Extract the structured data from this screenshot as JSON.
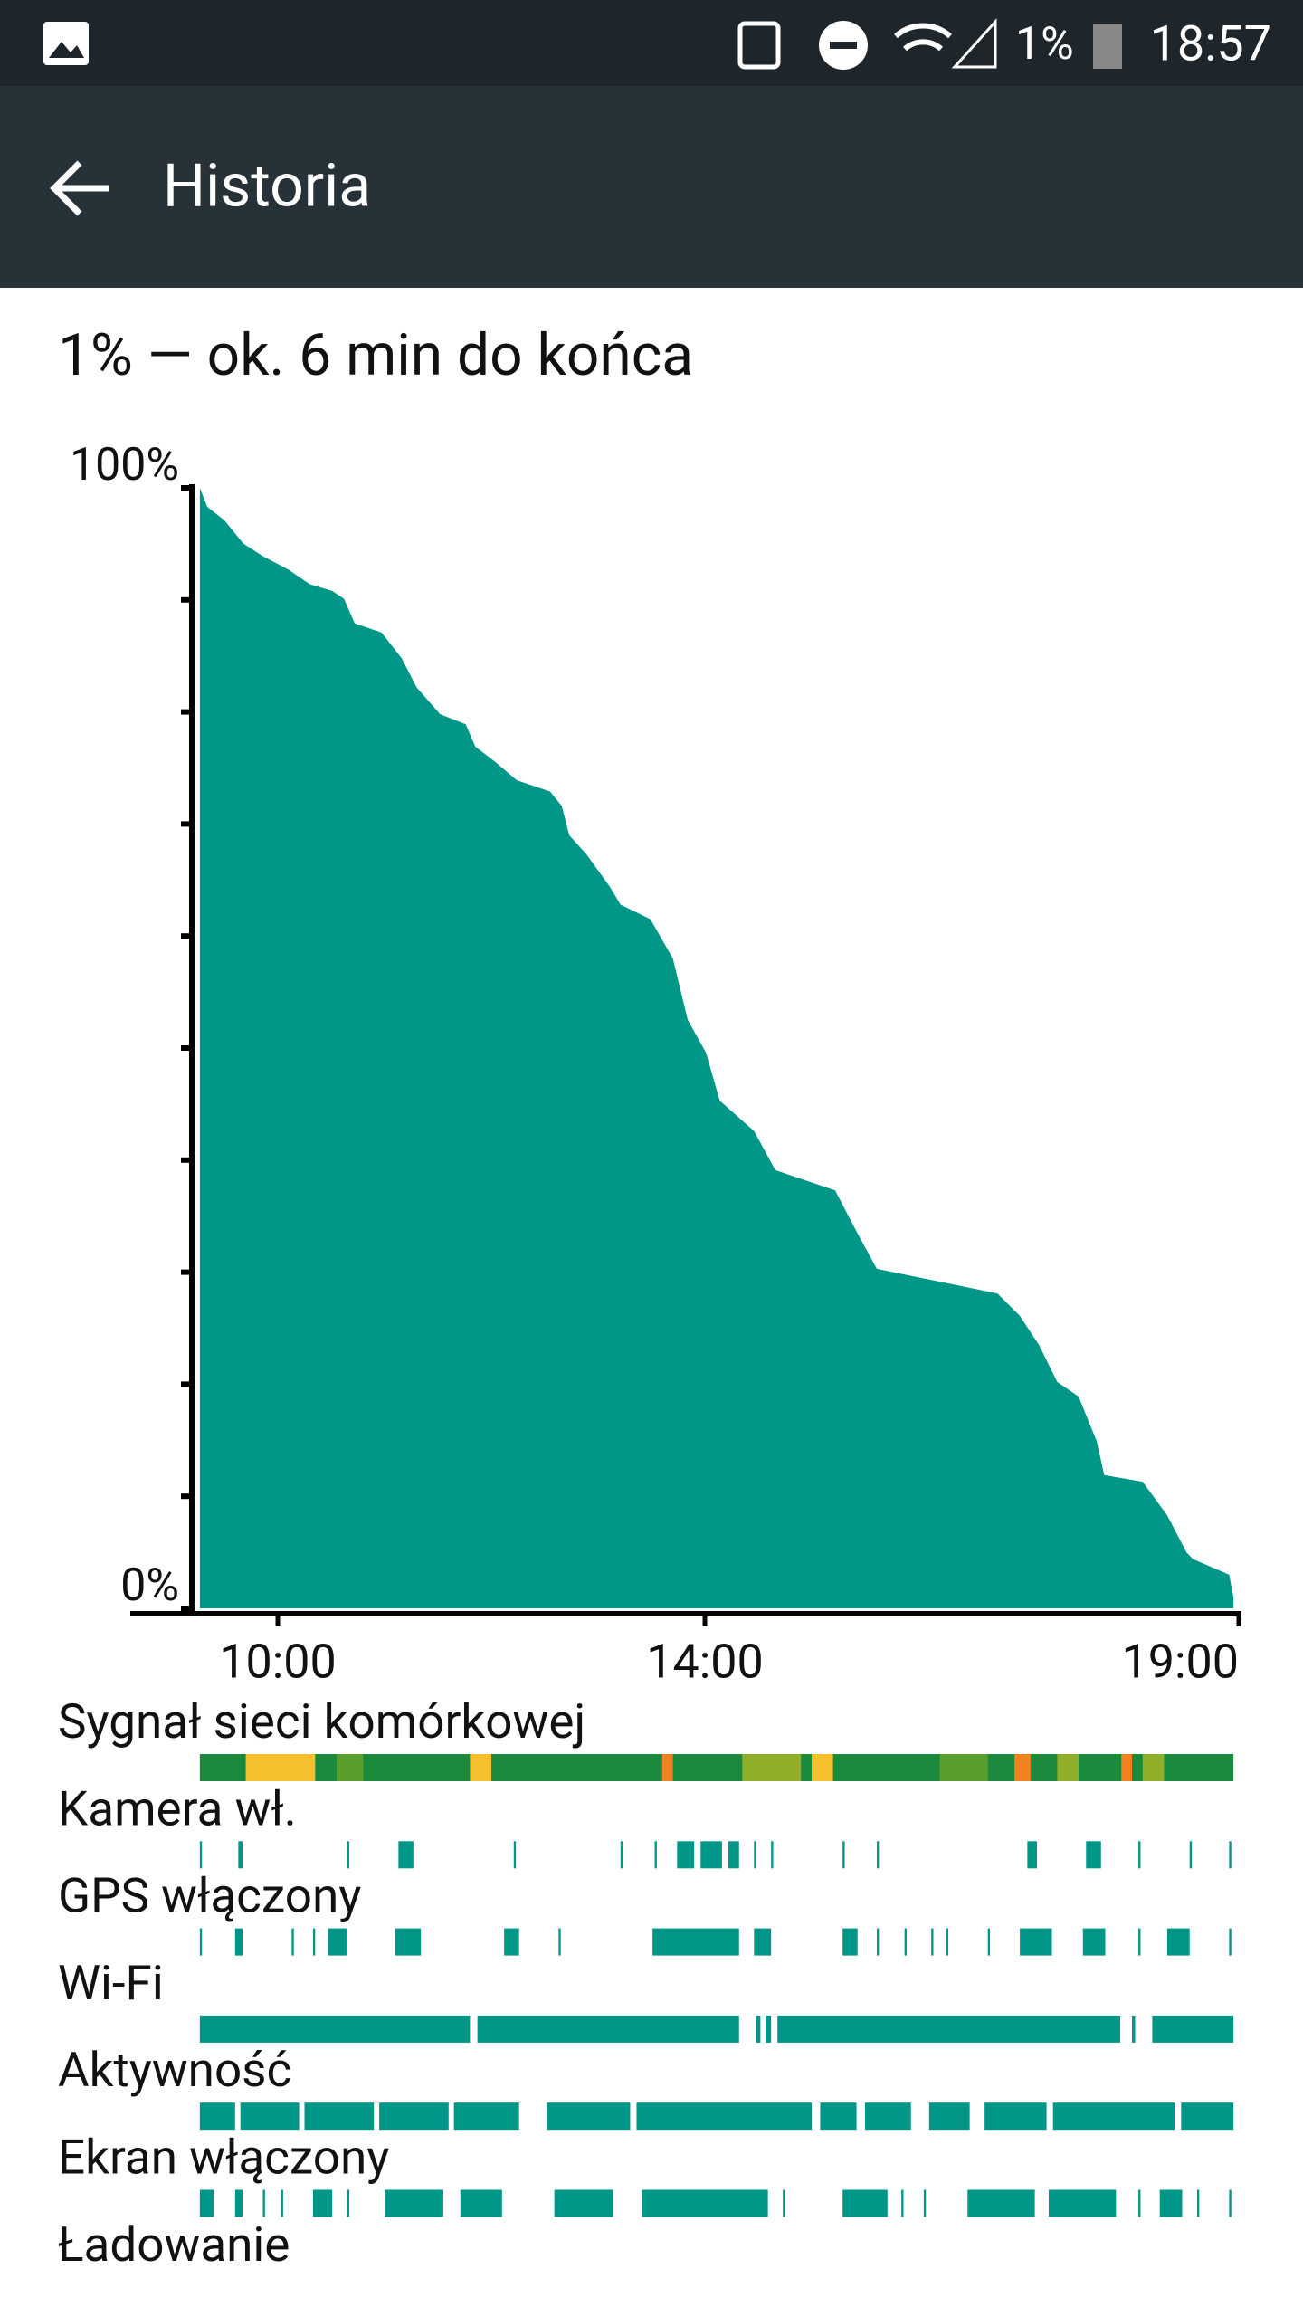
{
  "status_bar": {
    "battery": "1%",
    "time": "18:57"
  },
  "app_bar": {
    "title": "Historia"
  },
  "summary": "1% — ok. 6 min do końca",
  "chart_data": {
    "type": "area",
    "color": "#009688",
    "x": [
      9.27,
      9.34,
      9.5,
      9.68,
      9.86,
      10.1,
      10.3,
      10.51,
      10.62,
      10.72,
      10.97,
      11.16,
      11.3,
      11.52,
      11.76,
      11.85,
      12.03,
      12.24,
      12.55,
      12.66,
      12.73,
      12.89,
      13.11,
      13.21,
      13.49,
      13.7,
      13.84,
      14.01,
      14.14,
      14.46,
      14.66,
      15.22,
      15.4,
      15.61,
      16.74,
      16.95,
      17.13,
      17.3,
      17.5,
      17.67,
      17.74,
      18.1,
      18.33,
      18.51,
      18.57,
      18.91,
      18.95
    ],
    "values": [
      100,
      98.3,
      97.1,
      95,
      93.9,
      92.7,
      91.4,
      90.8,
      90.1,
      87.9,
      87.1,
      84.8,
      82.2,
      79.8,
      78.9,
      76.9,
      75.6,
      73.9,
      72.9,
      71.6,
      69,
      67.3,
      64.4,
      62.8,
      61.5,
      58,
      52.5,
      49.6,
      45.3,
      42.6,
      39.1,
      37.3,
      34,
      30.3,
      28.1,
      26.1,
      23.5,
      20.2,
      18.9,
      14.9,
      11.9,
      11.3,
      8.3,
      5,
      4.4,
      3,
      1
    ],
    "xlim": [
      9.27,
      18.95
    ],
    "xticks": [
      {
        "value": 10,
        "label": "10:00"
      },
      {
        "value": 14,
        "label": "14:00"
      },
      {
        "value": 19,
        "label": "19:00"
      }
    ],
    "ylim": [
      0,
      100
    ],
    "yticks": [
      {
        "value": 0,
        "label": "0%"
      },
      {
        "value": 10,
        "label": null
      },
      {
        "value": 20,
        "label": null
      },
      {
        "value": 30,
        "label": null
      },
      {
        "value": 40,
        "label": null
      },
      {
        "value": 50,
        "label": null
      },
      {
        "value": 60,
        "label": null
      },
      {
        "value": 70,
        "label": null
      },
      {
        "value": 80,
        "label": null
      },
      {
        "value": 90,
        "label": null
      },
      {
        "value": 100,
        "label": "100%"
      }
    ]
  },
  "tracks": [
    {
      "label": "Sygnał sieci komórkowej",
      "color": "#1b8a3c",
      "segments": [
        [
          9.27,
          18.95
        ],
        [
          9.7,
          10.35
        ],
        [
          10.55,
          10.8
        ],
        [
          11.8,
          12.0
        ],
        [
          13.6,
          13.7
        ],
        [
          14.35,
          14.9
        ],
        [
          15.0,
          15.2
        ],
        [
          16.2,
          16.65
        ],
        [
          16.9,
          17.05
        ],
        [
          17.3,
          17.5
        ],
        [
          17.9,
          18.0
        ],
        [
          18.1,
          18.3
        ]
      ],
      "colors": [
        "#1b8a3c",
        "#f6c02c",
        "#5a9e2f",
        "#f6c02c",
        "#f4811f",
        "#8fae2a",
        "#f6c02c",
        "#5a9e2f",
        "#f4811f",
        "#8fae2a",
        "#f4811f",
        "#8fae2a"
      ]
    },
    {
      "label": "Kamera wł.",
      "color": "#009688",
      "segments": [
        [
          9.27,
          9.29
        ],
        [
          9.63,
          9.67
        ],
        [
          10.65,
          10.67
        ],
        [
          11.13,
          11.27
        ],
        [
          12.21,
          12.23
        ],
        [
          13.21,
          13.23
        ],
        [
          13.53,
          13.55
        ],
        [
          13.74,
          13.9
        ],
        [
          13.96,
          14.16
        ],
        [
          14.22,
          14.32
        ],
        [
          14.46,
          14.48
        ],
        [
          14.62,
          14.64
        ],
        [
          15.29,
          15.31
        ],
        [
          15.61,
          15.63
        ],
        [
          17.02,
          17.11
        ],
        [
          17.57,
          17.71
        ],
        [
          18.06,
          18.08
        ],
        [
          18.54,
          18.56
        ],
        [
          18.91,
          18.93
        ]
      ]
    },
    {
      "label": "GPS włączony",
      "color": "#009688",
      "segments": [
        [
          9.27,
          9.29
        ],
        [
          9.6,
          9.67
        ],
        [
          10.13,
          10.15
        ],
        [
          10.33,
          10.35
        ],
        [
          10.47,
          10.65
        ],
        [
          11.1,
          11.34
        ],
        [
          12.12,
          12.26
        ],
        [
          12.63,
          12.65
        ],
        [
          13.51,
          14.32
        ],
        [
          14.46,
          14.62
        ],
        [
          15.29,
          15.43
        ],
        [
          15.61,
          15.63
        ],
        [
          15.87,
          15.89
        ],
        [
          16.12,
          16.14
        ],
        [
          16.26,
          16.28
        ],
        [
          16.65,
          16.67
        ],
        [
          16.95,
          17.25
        ],
        [
          17.54,
          17.75
        ],
        [
          18.06,
          18.08
        ],
        [
          18.33,
          18.54
        ],
        [
          18.91,
          18.93
        ]
      ]
    },
    {
      "label": "Wi-Fi",
      "color": "#009688",
      "segments": [
        [
          9.27,
          11.8
        ],
        [
          11.87,
          14.32
        ],
        [
          14.48,
          14.52
        ],
        [
          14.57,
          14.62
        ],
        [
          14.68,
          17.89
        ],
        [
          18.0,
          18.03
        ],
        [
          18.19,
          18.95
        ]
      ]
    },
    {
      "label": "Aktywność",
      "color": "#009688",
      "segments": [
        [
          9.27,
          9.6
        ],
        [
          9.65,
          10.2
        ],
        [
          10.25,
          10.9
        ],
        [
          10.95,
          11.6
        ],
        [
          11.65,
          12.26
        ],
        [
          12.52,
          13.3
        ],
        [
          13.36,
          15.0
        ],
        [
          15.08,
          15.42
        ],
        [
          15.5,
          15.93
        ],
        [
          16.1,
          16.48
        ],
        [
          16.62,
          17.2
        ],
        [
          17.26,
          18.4
        ],
        [
          18.46,
          18.95
        ]
      ]
    },
    {
      "label": "Ekran włączony",
      "color": "#009688",
      "segments": [
        [
          9.27,
          9.4
        ],
        [
          9.6,
          9.67
        ],
        [
          9.86,
          9.88
        ],
        [
          10.03,
          10.05
        ],
        [
          10.33,
          10.51
        ],
        [
          10.65,
          10.67
        ],
        [
          11.0,
          11.55
        ],
        [
          11.71,
          12.1
        ],
        [
          12.59,
          13.14
        ],
        [
          13.41,
          14.59
        ],
        [
          14.73,
          14.75
        ],
        [
          15.29,
          15.71
        ],
        [
          15.84,
          15.86
        ],
        [
          16.05,
          16.07
        ],
        [
          16.46,
          17.09
        ],
        [
          17.22,
          17.85
        ],
        [
          18.06,
          18.08
        ],
        [
          18.26,
          18.47
        ],
        [
          18.61,
          18.63
        ],
        [
          18.91,
          18.93
        ]
      ]
    },
    {
      "label": "Ładowanie",
      "color": "#009688",
      "segments": []
    }
  ]
}
